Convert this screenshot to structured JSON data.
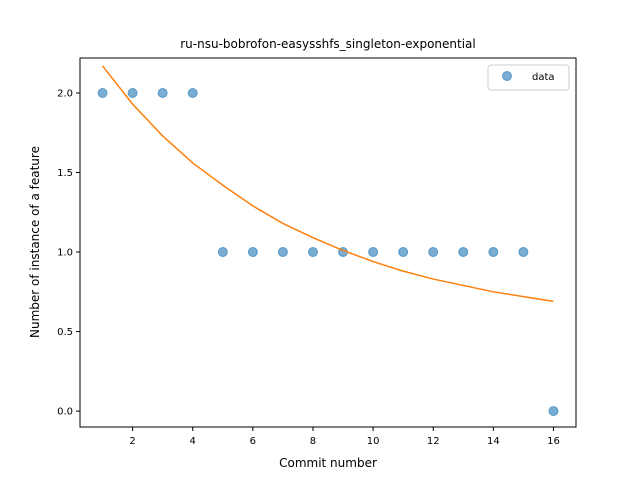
{
  "chart_data": {
    "type": "scatter",
    "title": "ru-nsu-bobrofon-easysshfs_singleton-exponential",
    "xlabel": "Commit number",
    "ylabel": "Number of instance of a feature",
    "xlim": [
      0.25,
      16.75
    ],
    "ylim": [
      -0.1,
      2.22
    ],
    "x_ticks": [
      2,
      4,
      6,
      8,
      10,
      12,
      14,
      16
    ],
    "y_ticks": [
      0.0,
      0.5,
      1.0,
      1.5,
      2.0
    ],
    "x_tick_labels": [
      "2",
      "4",
      "6",
      "8",
      "10",
      "12",
      "14",
      "16"
    ],
    "y_tick_labels": [
      "0.0",
      "0.5",
      "1.0",
      "1.5",
      "2.0"
    ],
    "grid": false,
    "legend": {
      "position": "top-right",
      "entries": [
        "data"
      ]
    },
    "series": [
      {
        "name": "data",
        "kind": "scatter",
        "color": "#1f77b4",
        "x": [
          1,
          2,
          3,
          4,
          5,
          6,
          7,
          8,
          9,
          10,
          11,
          12,
          13,
          14,
          15,
          16
        ],
        "y": [
          2,
          2,
          2,
          2,
          1,
          1,
          1,
          1,
          1,
          1,
          1,
          1,
          1,
          1,
          1,
          0
        ]
      },
      {
        "kind": "line",
        "color": "#ff7f0e",
        "x": [
          1,
          2,
          3,
          4,
          5,
          6,
          7,
          8,
          9,
          10,
          11,
          12,
          13,
          14,
          15,
          16
        ],
        "y": [
          2.17,
          1.93,
          1.73,
          1.56,
          1.42,
          1.29,
          1.18,
          1.09,
          1.01,
          0.94,
          0.88,
          0.83,
          0.79,
          0.75,
          0.72,
          0.69
        ]
      }
    ]
  }
}
